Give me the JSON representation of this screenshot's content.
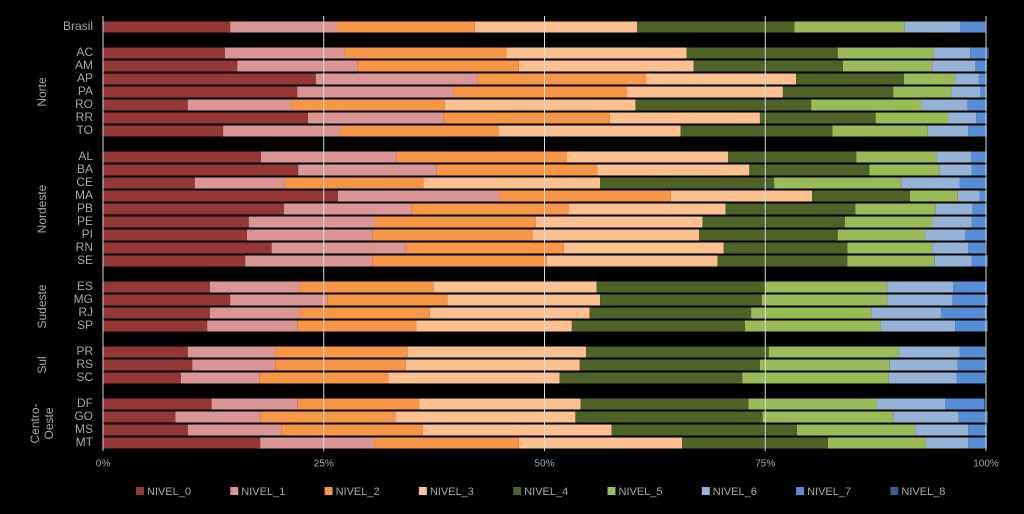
{
  "chart_data": {
    "type": "stacked-bar-horizontal",
    "groups": [
      {
        "categories": [
          "Brasil"
        ]
      },
      {
        "name": "Norte",
        "categories": [
          "AC",
          "AM",
          "AP",
          "PA",
          "RO",
          "RR",
          "TO"
        ]
      },
      {
        "name": "Nordeste",
        "categories": [
          "AL",
          "BA",
          "CE",
          "MA",
          "PB",
          "PE",
          "PI",
          "RN",
          "SE"
        ]
      },
      {
        "name": "Sudeste",
        "categories": [
          "ES",
          "MG",
          "RJ",
          "SP"
        ]
      },
      {
        "name": "Sul",
        "categories": [
          "PR",
          "RS",
          "SC"
        ]
      },
      {
        "name": "Centro-Oeste",
        "categories": [
          "DF",
          "GO",
          "MS",
          "MT"
        ]
      }
    ],
    "series": [
      {
        "name": "NIVEL_0",
        "color": "#953735",
        "values": [
          14.4,
          13.8,
          15.2,
          24.1,
          22.0,
          9.6,
          23.2,
          13.6,
          17.9,
          22.1,
          10.4,
          26.6,
          20.5,
          16.5,
          16.3,
          19.1,
          16.1,
          12.1,
          14.4,
          12.1,
          11.8,
          9.6,
          10.1,
          8.8,
          12.3,
          8.2,
          9.6,
          17.8
        ]
      },
      {
        "name": "NIVEL_1",
        "color": "#d99694",
        "values": [
          12.1,
          13.6,
          13.6,
          18.3,
          17.7,
          11.7,
          15.4,
          13.3,
          15.3,
          15.7,
          10.2,
          18.3,
          14.4,
          14.3,
          14.2,
          15.2,
          14.4,
          10.2,
          11.0,
          10.2,
          10.2,
          10.0,
          9.4,
          8.9,
          9.7,
          9.6,
          10.6,
          12.9
        ]
      },
      {
        "name": "NIVEL_2",
        "color": "#f79646",
        "values": [
          15.6,
          18.3,
          18.3,
          19.1,
          19.6,
          17.4,
          18.8,
          17.9,
          19.3,
          18.2,
          15.7,
          19.4,
          17.8,
          18.2,
          18.2,
          17.9,
          19.7,
          15.1,
          13.6,
          14.7,
          13.5,
          14.9,
          14.8,
          14.6,
          13.8,
          15.3,
          16.0,
          16.4
        ]
      },
      {
        "name": "NIVEL_3",
        "color": "#fac090",
        "values": [
          18.4,
          20.4,
          19.8,
          17.0,
          17.7,
          21.6,
          17.0,
          20.6,
          18.3,
          17.2,
          20.0,
          16.0,
          17.8,
          18.9,
          18.8,
          18.1,
          19.4,
          18.5,
          17.3,
          18.1,
          17.6,
          20.2,
          19.7,
          19.4,
          18.3,
          20.4,
          21.4,
          18.5
        ]
      },
      {
        "name": "NIVEL_4",
        "color": "#4f6228",
        "values": [
          17.8,
          17.1,
          16.9,
          12.2,
          12.5,
          19.9,
          13.1,
          17.2,
          14.5,
          13.6,
          19.7,
          11.1,
          14.7,
          16.1,
          15.7,
          14.0,
          14.7,
          19.1,
          18.3,
          18.3,
          19.6,
          20.7,
          20.4,
          20.7,
          19.0,
          21.2,
          21.0,
          16.5
        ]
      },
      {
        "name": "NIVEL_5",
        "color": "#9bbb59",
        "values": [
          12.5,
          10.9,
          10.1,
          5.8,
          6.6,
          12.5,
          8.2,
          10.8,
          9.1,
          7.9,
          14.4,
          5.4,
          9.1,
          10.0,
          9.9,
          9.6,
          9.9,
          13.8,
          14.2,
          13.6,
          15.4,
          14.7,
          14.7,
          16.6,
          14.5,
          14.8,
          13.4,
          11.1
        ]
      },
      {
        "name": "NIVEL_6",
        "color": "#95b3d7",
        "values": [
          6.3,
          4.1,
          4.9,
          2.7,
          3.3,
          5.2,
          3.2,
          4.6,
          3.9,
          3.7,
          6.6,
          2.5,
          4.2,
          4.4,
          4.6,
          4.1,
          4.2,
          7.5,
          7.4,
          7.9,
          8.4,
          6.9,
          7.7,
          7.7,
          7.8,
          7.4,
          6.0,
          4.8
        ]
      },
      {
        "name": "NIVEL_7",
        "color": "#558ed5",
        "values": [
          2.8,
          1.8,
          1.2,
          0.8,
          0.6,
          2.1,
          1.1,
          2.0,
          1.7,
          1.6,
          3.0,
          0.7,
          1.5,
          1.6,
          2.3,
          1.9,
          1.7,
          3.7,
          3.9,
          5.1,
          3.6,
          2.9,
          3.2,
          3.2,
          4.4,
          3.2,
          2.0,
          2.0
        ]
      },
      {
        "name": "NIVEL_8",
        "color": "#376092",
        "values": [
          0.1,
          0.3,
          0.1,
          0.1,
          0.1,
          0.1,
          0.1,
          0.1,
          0.1,
          0.1,
          0.1,
          0.1,
          0.1,
          0.1,
          0.1,
          0.1,
          0.1,
          0.1,
          0.1,
          0.1,
          0.1,
          0.1,
          0.1,
          0.1,
          0.1,
          0.1,
          0.1,
          0.1
        ]
      }
    ],
    "xlim": [
      0,
      100
    ],
    "xticks": [
      {
        "value": 0,
        "label": "0%"
      },
      {
        "value": 25,
        "label": "25%"
      },
      {
        "value": 50,
        "label": "50%"
      },
      {
        "value": 75,
        "label": "75%"
      },
      {
        "value": 100,
        "label": "100%"
      }
    ],
    "grid": true
  }
}
